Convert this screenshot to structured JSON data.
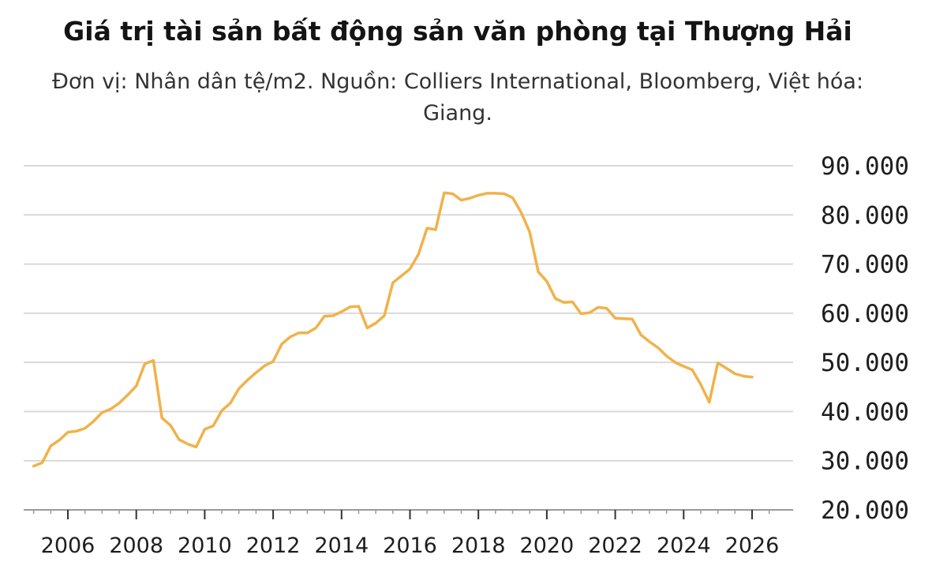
{
  "chart_data": {
    "type": "line",
    "title": "Giá trị tài sản bất động sản văn phòng tại Thượng Hải",
    "subtitle": "Đơn vị: Nhân dân tệ/m2. Nguồn: Colliers International, Bloomberg, Việt hóa: Giang.",
    "xlabel": "",
    "ylabel": "",
    "xlim": [
      2005,
      2027
    ],
    "ylim": [
      20000,
      90000
    ],
    "x_ticks": [
      2006,
      2008,
      2010,
      2012,
      2014,
      2016,
      2018,
      2020,
      2022,
      2024,
      2026
    ],
    "x_tick_labels": [
      "2006",
      "2008",
      "2010",
      "2012",
      "2014",
      "2016",
      "2018",
      "2020",
      "2022",
      "2024",
      "2026"
    ],
    "y_ticks": [
      20000,
      30000,
      40000,
      50000,
      60000,
      70000,
      80000,
      90000
    ],
    "y_tick_labels": [
      "20.000",
      "30.000",
      "40.000",
      "50.000",
      "60.000",
      "70.000",
      "80.000",
      "90.000"
    ],
    "grid": true,
    "axis_side": "right",
    "line_color": "#f0b24a",
    "grid_color": "#d9d9d9",
    "series": [
      {
        "x": [
          2005.0,
          2005.25,
          2005.5,
          2005.75,
          2006.0,
          2006.25,
          2006.5,
          2006.75,
          2007.0,
          2007.25,
          2007.5,
          2007.75,
          2008.0,
          2008.25,
          2008.5,
          2008.75,
          2009.0,
          2009.25,
          2009.5,
          2009.75,
          2010.0,
          2010.25,
          2010.5,
          2010.75,
          2011.0,
          2011.25,
          2011.5,
          2011.75,
          2012.0,
          2012.25,
          2012.5,
          2012.75,
          2013.0,
          2013.25,
          2013.5,
          2013.75,
          2014.0,
          2014.25,
          2014.5,
          2014.75,
          2015.0,
          2015.25,
          2015.5,
          2015.75,
          2016.0,
          2016.25,
          2016.5,
          2016.75,
          2017.0,
          2017.25,
          2017.5,
          2017.75,
          2018.0,
          2018.25,
          2018.5,
          2018.75,
          2019.0,
          2019.25,
          2019.5,
          2019.75,
          2020.0,
          2020.25,
          2020.5,
          2020.75,
          2021.0,
          2021.25,
          2021.5,
          2021.75,
          2022.0,
          2022.25,
          2022.5,
          2022.75,
          2023.0,
          2023.25,
          2023.5,
          2023.75,
          2024.0,
          2024.25,
          2024.5,
          2024.75,
          2025.0,
          2025.25,
          2025.5,
          2025.75,
          2026.0
        ],
        "values": [
          28900,
          29600,
          33000,
          34200,
          35800,
          36000,
          36600,
          38000,
          39800,
          40500,
          41700,
          43400,
          45200,
          49700,
          50400,
          38700,
          37200,
          34300,
          33400,
          32800,
          36400,
          37100,
          40200,
          41700,
          44700,
          46400,
          47900,
          49300,
          50200,
          53700,
          55200,
          56000,
          56000,
          57000,
          59400,
          59500,
          60300,
          61300,
          61400,
          57000,
          58000,
          59500,
          66200,
          67600,
          69000,
          72000,
          77300,
          77000,
          84500,
          84300,
          83000,
          83400,
          84000,
          84400,
          84400,
          84300,
          83500,
          80500,
          76500,
          68400,
          66500,
          63000,
          62200,
          62300,
          59900,
          60100,
          61200,
          61000,
          59000,
          58900,
          58800,
          55600,
          54200,
          53000,
          51300,
          50000,
          49200,
          48500,
          45500,
          41900,
          49900,
          48800,
          47700,
          47200,
          47000
        ]
      }
    ]
  }
}
